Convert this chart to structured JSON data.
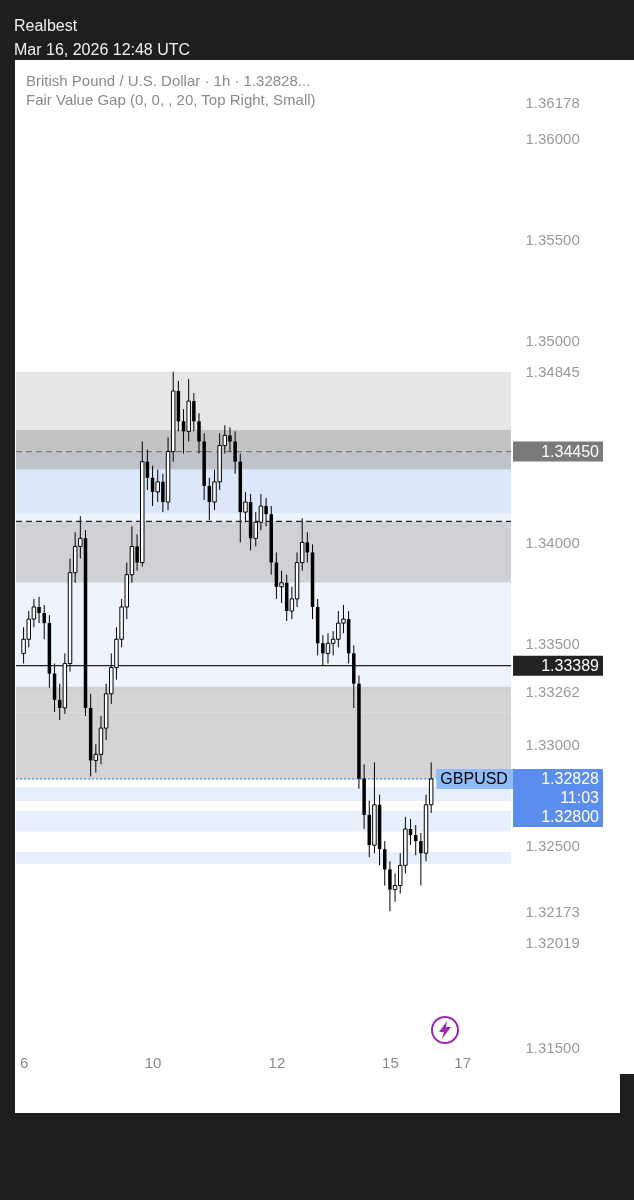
{
  "chart_data": {
    "type": "candlestick",
    "title": "British Pound / U.S. Dollar · 1h · 1.32828...",
    "subtitle": "Fair Value Gap (0, 0, , 20, Top Right, Small)",
    "categories": [
      "6",
      null,
      null,
      null,
      null,
      null,
      null,
      null,
      null,
      null,
      null,
      null,
      null,
      null,
      null,
      null,
      null,
      null,
      null,
      null,
      null,
      null,
      null,
      null,
      null,
      "10",
      null,
      null,
      null,
      null,
      null,
      null,
      null,
      null,
      null,
      null,
      null,
      null,
      null,
      null,
      null,
      null,
      null,
      null,
      null,
      null,
      null,
      null,
      null,
      "12",
      null,
      null,
      null,
      null,
      null,
      null,
      null,
      null,
      null,
      null,
      null,
      null,
      null,
      null,
      null,
      null,
      null,
      null,
      null,
      null,
      null,
      "15",
      null,
      null,
      null,
      null,
      null,
      null,
      null,
      null,
      null,
      null,
      null,
      null,
      null,
      "17",
      null,
      null,
      null,
      null,
      null,
      null,
      null,
      null
    ],
    "series": [
      {
        "name": "GBPUSD",
        "color": "#000000",
        "ohlc": [
          [
            1.3345,
            1.3358,
            1.334,
            1.3352
          ],
          [
            1.3352,
            1.3366,
            1.3348,
            1.3362
          ],
          [
            1.3362,
            1.3372,
            1.3358,
            1.3368
          ],
          [
            1.3368,
            1.3373,
            1.336,
            1.3365
          ],
          [
            1.3365,
            1.3369,
            1.3352,
            1.336
          ],
          [
            1.336,
            1.3364,
            1.3328,
            1.3335
          ],
          [
            1.3335,
            1.334,
            1.3316,
            1.3322
          ],
          [
            1.3322,
            1.333,
            1.3312,
            1.3318
          ],
          [
            1.3318,
            1.3345,
            1.3315,
            1.334
          ],
          [
            1.334,
            1.3392,
            1.3336,
            1.3385
          ],
          [
            1.3385,
            1.3405,
            1.338,
            1.3398
          ],
          [
            1.3398,
            1.3413,
            1.3392,
            1.3402
          ],
          [
            1.3402,
            1.3406,
            1.3314,
            1.3318
          ],
          [
            1.3318,
            1.3325,
            1.3284,
            1.3292
          ],
          [
            1.3292,
            1.33,
            1.3286,
            1.3295
          ],
          [
            1.3295,
            1.3314,
            1.329,
            1.3308
          ],
          [
            1.3308,
            1.333,
            1.3302,
            1.3325
          ],
          [
            1.3325,
            1.3345,
            1.332,
            1.3338
          ],
          [
            1.3338,
            1.3358,
            1.3332,
            1.3352
          ],
          [
            1.3352,
            1.3372,
            1.3348,
            1.3368
          ],
          [
            1.3368,
            1.339,
            1.3362,
            1.3384
          ],
          [
            1.3384,
            1.3408,
            1.338,
            1.3398
          ],
          [
            1.3398,
            1.3404,
            1.3386,
            1.339
          ],
          [
            1.339,
            1.345,
            1.3388,
            1.344
          ],
          [
            1.344,
            1.3446,
            1.3426,
            1.3432
          ],
          [
            1.3432,
            1.3438,
            1.3418,
            1.3425
          ],
          [
            1.3425,
            1.3436,
            1.342,
            1.343
          ],
          [
            1.343,
            1.3434,
            1.3415,
            1.342
          ],
          [
            1.342,
            1.3452,
            1.3416,
            1.3445
          ],
          [
            1.3445,
            1.34845,
            1.344,
            1.3475
          ],
          [
            1.3475,
            1.348,
            1.3455,
            1.346
          ],
          [
            1.346,
            1.3466,
            1.3444,
            1.3455
          ],
          [
            1.3455,
            1.3481,
            1.345,
            1.347
          ],
          [
            1.347,
            1.3474,
            1.3455,
            1.346
          ],
          [
            1.346,
            1.3464,
            1.3444,
            1.345
          ],
          [
            1.345,
            1.3454,
            1.3421,
            1.3428
          ],
          [
            1.3428,
            1.3432,
            1.3411,
            1.342
          ],
          [
            1.342,
            1.3436,
            1.3416,
            1.343
          ],
          [
            1.343,
            1.3454,
            1.3426,
            1.3448
          ],
          [
            1.3448,
            1.3458,
            1.3444,
            1.3453
          ],
          [
            1.3453,
            1.3457,
            1.3445,
            1.345
          ],
          [
            1.345,
            1.3455,
            1.3434,
            1.344
          ],
          [
            1.344,
            1.3444,
            1.34,
            1.3415
          ],
          [
            1.3415,
            1.3425,
            1.341,
            1.342
          ],
          [
            1.342,
            1.3424,
            1.3396,
            1.3402
          ],
          [
            1.3402,
            1.3415,
            1.3398,
            1.341
          ],
          [
            1.341,
            1.3424,
            1.3406,
            1.3418
          ],
          [
            1.3418,
            1.3422,
            1.3408,
            1.3414
          ],
          [
            1.3414,
            1.3418,
            1.3384,
            1.339
          ],
          [
            1.339,
            1.3395,
            1.3372,
            1.3378
          ],
          [
            1.3378,
            1.3386,
            1.337,
            1.338
          ],
          [
            1.338,
            1.3384,
            1.3361,
            1.3366
          ],
          [
            1.3366,
            1.3378,
            1.3362,
            1.3372
          ],
          [
            1.3372,
            1.3395,
            1.3368,
            1.339
          ],
          [
            1.339,
            1.3412,
            1.3386,
            1.34
          ],
          [
            1.34,
            1.3405,
            1.339,
            1.3395
          ],
          [
            1.3395,
            1.3399,
            1.3362,
            1.3368
          ],
          [
            1.3368,
            1.3372,
            1.3344,
            1.335
          ],
          [
            1.335,
            1.3354,
            1.3339,
            1.3345
          ],
          [
            1.3345,
            1.3355,
            1.334,
            1.335
          ],
          [
            1.335,
            1.3356,
            1.3344,
            1.3352
          ],
          [
            1.3352,
            1.3366,
            1.3348,
            1.336
          ],
          [
            1.336,
            1.3369,
            1.3355,
            1.3362
          ],
          [
            1.3362,
            1.3366,
            1.334,
            1.3345
          ],
          [
            1.3345,
            1.3349,
            1.3318,
            1.333
          ],
          [
            1.333,
            1.3334,
            1.3278,
            1.3283
          ],
          [
            1.3283,
            1.329,
            1.3258,
            1.3265
          ],
          [
            1.3265,
            1.3272,
            1.3244,
            1.325
          ],
          [
            1.325,
            1.3291,
            1.3246,
            1.327
          ],
          [
            1.327,
            1.3275,
            1.324,
            1.3248
          ],
          [
            1.3248,
            1.3252,
            1.323,
            1.3238
          ],
          [
            1.3238,
            1.3242,
            1.32173,
            1.3228
          ],
          [
            1.3228,
            1.3236,
            1.3222,
            1.323
          ],
          [
            1.323,
            1.3246,
            1.3226,
            1.324
          ],
          [
            1.324,
            1.3264,
            1.3236,
            1.3258
          ],
          [
            1.3258,
            1.3263,
            1.325,
            1.3255
          ],
          [
            1.3255,
            1.326,
            1.3245,
            1.3252
          ],
          [
            1.3252,
            1.3256,
            1.323,
            1.3246
          ],
          [
            1.3246,
            1.3275,
            1.3242,
            1.327
          ],
          [
            1.327,
            1.3291,
            1.3266,
            1.32828
          ],
          null,
          null,
          null,
          null,
          null,
          null,
          null,
          null,
          null,
          null,
          null,
          null,
          null,
          null
        ]
      }
    ],
    "ylim": [
      1.315,
      1.3638
    ],
    "yticks": [
      {
        "value": 1.315,
        "label": "1.31500"
      },
      {
        "value": 1.32019,
        "label": "1.32019"
      },
      {
        "value": 1.32173,
        "label": "1.32173"
      },
      {
        "value": 1.33262,
        "label": "1.33262"
      },
      {
        "value": 1.34845,
        "label": "1.34845"
      },
      {
        "value": 1.325,
        "label": "1.32500"
      },
      {
        "value": 1.33,
        "label": "1.33000"
      },
      {
        "value": 1.335,
        "label": "1.33500"
      },
      {
        "value": 1.34,
        "label": "1.34000"
      },
      {
        "value": 1.35,
        "label": "1.35000"
      },
      {
        "value": 1.355,
        "label": "1.35500"
      },
      {
        "value": 1.36,
        "label": "1.36000"
      },
      {
        "value": 1.36178,
        "label": "1.36178"
      }
    ],
    "bands": [
      {
        "axis": "y",
        "from": 1.3445,
        "to": 1.34845,
        "color": "#dcdcdc"
      },
      {
        "axis": "y",
        "from": 1.33262,
        "to": 1.3445,
        "color": "#e6effc"
      },
      {
        "axis": "y",
        "from": 1.34143,
        "to": 1.3445,
        "color": "#d2e2f8"
      },
      {
        "axis": "y",
        "from": 1.34362,
        "to": 1.34557,
        "color": "#b4b4b4"
      },
      {
        "axis": "y",
        "from": 1.33801,
        "to": 1.34104,
        "color": "#c2c2c2"
      },
      {
        "axis": "y",
        "from": 1.33158,
        "to": 1.33285,
        "color": "#c2c2c2"
      },
      {
        "axis": "y",
        "from": 1.32826,
        "to": 1.33158,
        "color": "#c2c2c2"
      },
      {
        "axis": "y",
        "from": 1.32719,
        "to": 1.32787,
        "color": "#dbe8fb"
      },
      {
        "axis": "y",
        "from": 1.32568,
        "to": 1.3267,
        "color": "#dbe8fb"
      },
      {
        "axis": "y",
        "from": 1.32407,
        "to": 1.32466,
        "color": "#dbe8fb"
      }
    ],
    "ref_lines": [
      {
        "axis": "y",
        "value": 1.3445,
        "label": "1.34450",
        "color": "#7a7a7a",
        "line_style": "dashed"
      },
      {
        "axis": "y",
        "value": 1.34104,
        "color": "#222222",
        "line_style": "dashed"
      },
      {
        "axis": "y",
        "value": 1.33389,
        "label": "1.33389",
        "color": "#222222",
        "line_style": "solid"
      },
      {
        "axis": "y",
        "value": 1.32828,
        "label": "1.32828\n11:03\n1.32800",
        "color": "#5b8def",
        "line_style": "dotted"
      }
    ],
    "annotations": [
      "Realbest",
      "Mar 16, 2026 12:48 UTC"
    ]
  }
}
